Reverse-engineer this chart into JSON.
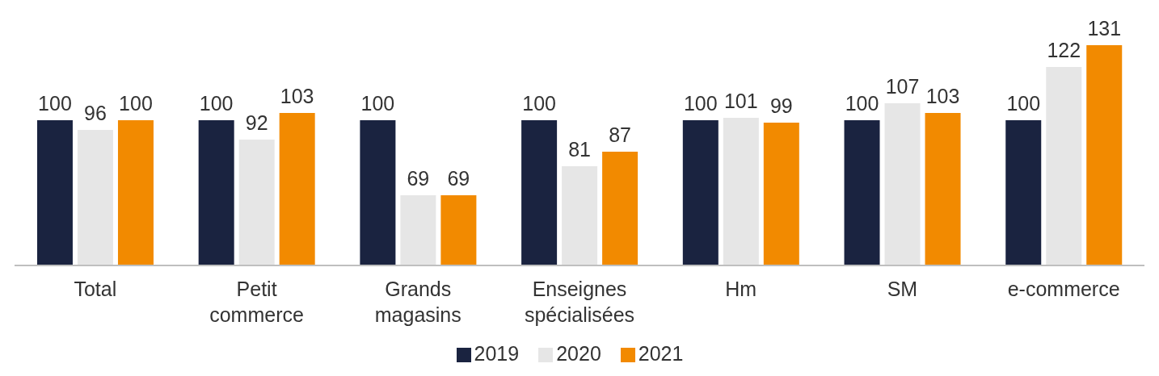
{
  "chart_data": {
    "type": "bar",
    "categories": [
      "Total",
      "Petit commerce",
      "Grands magasins",
      "Enseignes spécialisées",
      "Hm",
      "SM",
      "e-commerce"
    ],
    "series": [
      {
        "name": "2019",
        "color": "#1a2340",
        "values": [
          100,
          100,
          100,
          100,
          100,
          100,
          100
        ]
      },
      {
        "name": "2020",
        "color": "#e6e6e6",
        "values": [
          96,
          92,
          69,
          81,
          101,
          107,
          122
        ]
      },
      {
        "name": "2021",
        "color": "#f28a00",
        "values": [
          100,
          103,
          69,
          87,
          99,
          103,
          131
        ]
      }
    ],
    "ylim": [
      40,
      131
    ],
    "data_labels": true,
    "legend": "bottom",
    "grid": false,
    "tick_labels": "x"
  }
}
